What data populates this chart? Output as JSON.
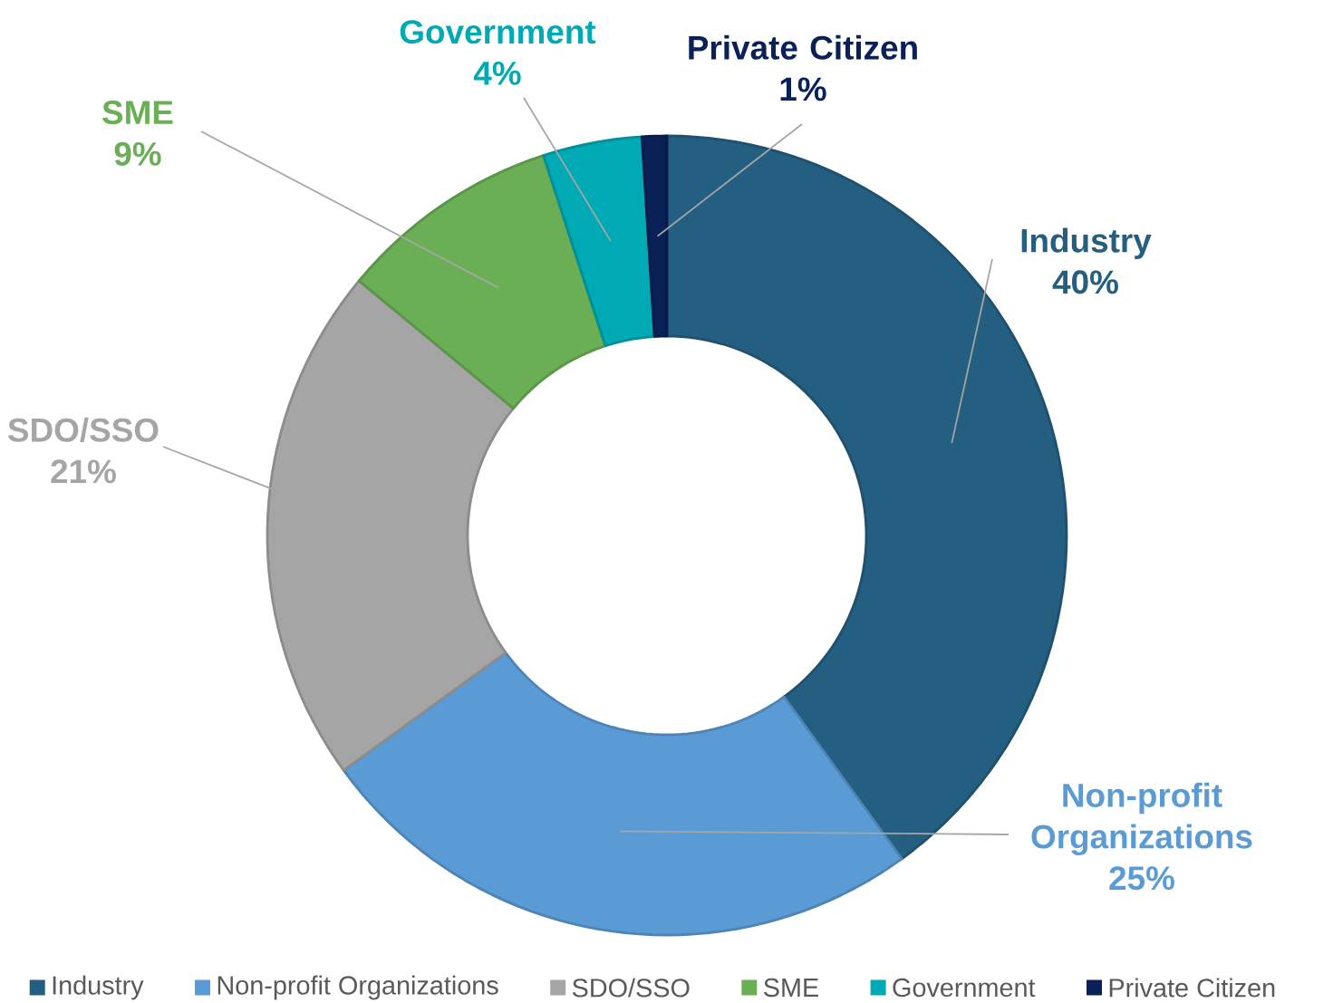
{
  "chart_data": {
    "type": "donut",
    "categories": [
      "Industry",
      "Non-profit Organizations",
      "SDO/SSO",
      "SME",
      "Government",
      "Private Citizen"
    ],
    "values": [
      40,
      25,
      21,
      9,
      4,
      1
    ],
    "colors": [
      "#245e80",
      "#5b9bd5",
      "#a5a5a5",
      "#6aaf55",
      "#00aab5",
      "#0a2158"
    ],
    "value_labels": [
      "40%",
      "25%",
      "21%",
      "9%",
      "4%",
      "1%"
    ],
    "legend": "bottom"
  }
}
